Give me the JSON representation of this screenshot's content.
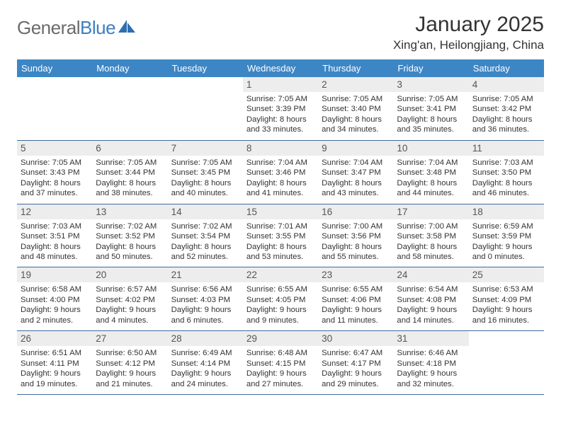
{
  "brand": {
    "word1": "General",
    "word2": "Blue"
  },
  "title": "January 2025",
  "location": "Xing'an, Heilongjiang, China",
  "colors": {
    "header_bg": "#3d86c6",
    "header_text": "#ffffff",
    "daynum_bg": "#ededed",
    "row_border": "#3d6b9e",
    "brand_gray": "#6b6b6b",
    "brand_blue": "#3d7ebf",
    "body_text": "#333333",
    "page_bg": "#ffffff"
  },
  "typography": {
    "month_title_fontsize": 30,
    "location_fontsize": 17,
    "weekday_fontsize": 13,
    "daynum_fontsize": 13.5,
    "cell_fontsize": 11.3,
    "logo_fontsize": 26
  },
  "weekdays": [
    "Sunday",
    "Monday",
    "Tuesday",
    "Wednesday",
    "Thursday",
    "Friday",
    "Saturday"
  ],
  "weeks": [
    [
      null,
      null,
      null,
      {
        "n": "1",
        "sr": "Sunrise: 7:05 AM",
        "ss": "Sunset: 3:39 PM",
        "dl1": "Daylight: 8 hours",
        "dl2": "and 33 minutes."
      },
      {
        "n": "2",
        "sr": "Sunrise: 7:05 AM",
        "ss": "Sunset: 3:40 PM",
        "dl1": "Daylight: 8 hours",
        "dl2": "and 34 minutes."
      },
      {
        "n": "3",
        "sr": "Sunrise: 7:05 AM",
        "ss": "Sunset: 3:41 PM",
        "dl1": "Daylight: 8 hours",
        "dl2": "and 35 minutes."
      },
      {
        "n": "4",
        "sr": "Sunrise: 7:05 AM",
        "ss": "Sunset: 3:42 PM",
        "dl1": "Daylight: 8 hours",
        "dl2": "and 36 minutes."
      }
    ],
    [
      {
        "n": "5",
        "sr": "Sunrise: 7:05 AM",
        "ss": "Sunset: 3:43 PM",
        "dl1": "Daylight: 8 hours",
        "dl2": "and 37 minutes."
      },
      {
        "n": "6",
        "sr": "Sunrise: 7:05 AM",
        "ss": "Sunset: 3:44 PM",
        "dl1": "Daylight: 8 hours",
        "dl2": "and 38 minutes."
      },
      {
        "n": "7",
        "sr": "Sunrise: 7:05 AM",
        "ss": "Sunset: 3:45 PM",
        "dl1": "Daylight: 8 hours",
        "dl2": "and 40 minutes."
      },
      {
        "n": "8",
        "sr": "Sunrise: 7:04 AM",
        "ss": "Sunset: 3:46 PM",
        "dl1": "Daylight: 8 hours",
        "dl2": "and 41 minutes."
      },
      {
        "n": "9",
        "sr": "Sunrise: 7:04 AM",
        "ss": "Sunset: 3:47 PM",
        "dl1": "Daylight: 8 hours",
        "dl2": "and 43 minutes."
      },
      {
        "n": "10",
        "sr": "Sunrise: 7:04 AM",
        "ss": "Sunset: 3:48 PM",
        "dl1": "Daylight: 8 hours",
        "dl2": "and 44 minutes."
      },
      {
        "n": "11",
        "sr": "Sunrise: 7:03 AM",
        "ss": "Sunset: 3:50 PM",
        "dl1": "Daylight: 8 hours",
        "dl2": "and 46 minutes."
      }
    ],
    [
      {
        "n": "12",
        "sr": "Sunrise: 7:03 AM",
        "ss": "Sunset: 3:51 PM",
        "dl1": "Daylight: 8 hours",
        "dl2": "and 48 minutes."
      },
      {
        "n": "13",
        "sr": "Sunrise: 7:02 AM",
        "ss": "Sunset: 3:52 PM",
        "dl1": "Daylight: 8 hours",
        "dl2": "and 50 minutes."
      },
      {
        "n": "14",
        "sr": "Sunrise: 7:02 AM",
        "ss": "Sunset: 3:54 PM",
        "dl1": "Daylight: 8 hours",
        "dl2": "and 52 minutes."
      },
      {
        "n": "15",
        "sr": "Sunrise: 7:01 AM",
        "ss": "Sunset: 3:55 PM",
        "dl1": "Daylight: 8 hours",
        "dl2": "and 53 minutes."
      },
      {
        "n": "16",
        "sr": "Sunrise: 7:00 AM",
        "ss": "Sunset: 3:56 PM",
        "dl1": "Daylight: 8 hours",
        "dl2": "and 55 minutes."
      },
      {
        "n": "17",
        "sr": "Sunrise: 7:00 AM",
        "ss": "Sunset: 3:58 PM",
        "dl1": "Daylight: 8 hours",
        "dl2": "and 58 minutes."
      },
      {
        "n": "18",
        "sr": "Sunrise: 6:59 AM",
        "ss": "Sunset: 3:59 PM",
        "dl1": "Daylight: 9 hours",
        "dl2": "and 0 minutes."
      }
    ],
    [
      {
        "n": "19",
        "sr": "Sunrise: 6:58 AM",
        "ss": "Sunset: 4:00 PM",
        "dl1": "Daylight: 9 hours",
        "dl2": "and 2 minutes."
      },
      {
        "n": "20",
        "sr": "Sunrise: 6:57 AM",
        "ss": "Sunset: 4:02 PM",
        "dl1": "Daylight: 9 hours",
        "dl2": "and 4 minutes."
      },
      {
        "n": "21",
        "sr": "Sunrise: 6:56 AM",
        "ss": "Sunset: 4:03 PM",
        "dl1": "Daylight: 9 hours",
        "dl2": "and 6 minutes."
      },
      {
        "n": "22",
        "sr": "Sunrise: 6:55 AM",
        "ss": "Sunset: 4:05 PM",
        "dl1": "Daylight: 9 hours",
        "dl2": "and 9 minutes."
      },
      {
        "n": "23",
        "sr": "Sunrise: 6:55 AM",
        "ss": "Sunset: 4:06 PM",
        "dl1": "Daylight: 9 hours",
        "dl2": "and 11 minutes."
      },
      {
        "n": "24",
        "sr": "Sunrise: 6:54 AM",
        "ss": "Sunset: 4:08 PM",
        "dl1": "Daylight: 9 hours",
        "dl2": "and 14 minutes."
      },
      {
        "n": "25",
        "sr": "Sunrise: 6:53 AM",
        "ss": "Sunset: 4:09 PM",
        "dl1": "Daylight: 9 hours",
        "dl2": "and 16 minutes."
      }
    ],
    [
      {
        "n": "26",
        "sr": "Sunrise: 6:51 AM",
        "ss": "Sunset: 4:11 PM",
        "dl1": "Daylight: 9 hours",
        "dl2": "and 19 minutes."
      },
      {
        "n": "27",
        "sr": "Sunrise: 6:50 AM",
        "ss": "Sunset: 4:12 PM",
        "dl1": "Daylight: 9 hours",
        "dl2": "and 21 minutes."
      },
      {
        "n": "28",
        "sr": "Sunrise: 6:49 AM",
        "ss": "Sunset: 4:14 PM",
        "dl1": "Daylight: 9 hours",
        "dl2": "and 24 minutes."
      },
      {
        "n": "29",
        "sr": "Sunrise: 6:48 AM",
        "ss": "Sunset: 4:15 PM",
        "dl1": "Daylight: 9 hours",
        "dl2": "and 27 minutes."
      },
      {
        "n": "30",
        "sr": "Sunrise: 6:47 AM",
        "ss": "Sunset: 4:17 PM",
        "dl1": "Daylight: 9 hours",
        "dl2": "and 29 minutes."
      },
      {
        "n": "31",
        "sr": "Sunrise: 6:46 AM",
        "ss": "Sunset: 4:18 PM",
        "dl1": "Daylight: 9 hours",
        "dl2": "and 32 minutes."
      },
      null
    ]
  ]
}
